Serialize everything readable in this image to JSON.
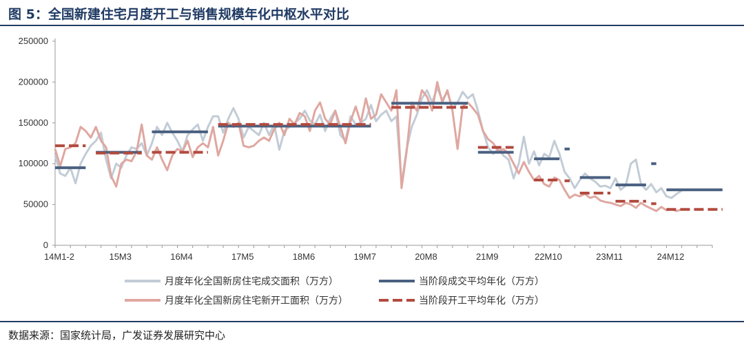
{
  "title": "图 5：全国新建住宅月度开工与销售规模年化中枢水平对比",
  "source": "数据来源：国家统计局，广发证券发展研究中心",
  "colors": {
    "sales": "#c2ccd6",
    "sales_avg": "#4a6080",
    "starts": "#dfa7a0",
    "starts_avg": "#b24a3f",
    "axis": "#999999",
    "rule": "#1f3a63"
  },
  "chart_data": {
    "type": "line",
    "title": "全国新建住宅月度开工与销售规模年化中枢水平对比",
    "ylim": [
      0,
      250000
    ],
    "y_ticks": [
      "0",
      "50000",
      "100000",
      "150000",
      "200000",
      "250000"
    ],
    "x_tick_labels": [
      "14M1-2",
      "15M3",
      "16M4",
      "17M5",
      "18M6",
      "19M7",
      "20M8",
      "21M9",
      "22M10",
      "23M11",
      "24M12"
    ],
    "x_tick_index": [
      0,
      12,
      24,
      36,
      48,
      60,
      72,
      84,
      96,
      108,
      120
    ],
    "n_points": 130,
    "series": [
      {
        "name": "月度年化全国新房住宅成交面积（万方）",
        "style": "line",
        "anchors": [
          [
            0,
            110000
          ],
          [
            1,
            88000
          ],
          [
            2,
            85000
          ],
          [
            3,
            95000
          ],
          [
            4,
            76000
          ],
          [
            5,
            100000
          ],
          [
            6,
            112000
          ],
          [
            7,
            122000
          ],
          [
            8,
            128000
          ],
          [
            9,
            138000
          ],
          [
            10,
            105000
          ],
          [
            11,
            82000
          ],
          [
            12,
            100000
          ],
          [
            13,
            95000
          ],
          [
            14,
            110000
          ],
          [
            15,
            120000
          ],
          [
            16,
            118000
          ],
          [
            17,
            125000
          ],
          [
            18,
            110000
          ],
          [
            19,
            125000
          ],
          [
            20,
            145000
          ],
          [
            21,
            135000
          ],
          [
            22,
            150000
          ],
          [
            23,
            138000
          ],
          [
            24,
            128000
          ],
          [
            25,
            115000
          ],
          [
            26,
            135000
          ],
          [
            27,
            142000
          ],
          [
            28,
            148000
          ],
          [
            29,
            128000
          ],
          [
            30,
            145000
          ],
          [
            31,
            158000
          ],
          [
            32,
            158000
          ],
          [
            33,
            138000
          ],
          [
            34,
            155000
          ],
          [
            35,
            168000
          ],
          [
            36,
            155000
          ],
          [
            37,
            132000
          ],
          [
            38,
            145000
          ],
          [
            39,
            140000
          ],
          [
            40,
            135000
          ],
          [
            41,
            150000
          ],
          [
            42,
            135000
          ],
          [
            43,
            148000
          ],
          [
            44,
            117000
          ],
          [
            45,
            140000
          ],
          [
            46,
            145000
          ],
          [
            47,
            150000
          ],
          [
            48,
            155000
          ],
          [
            49,
            165000
          ],
          [
            50,
            153000
          ],
          [
            51,
            148000
          ],
          [
            52,
            160000
          ],
          [
            53,
            140000
          ],
          [
            54,
            155000
          ],
          [
            55,
            165000
          ],
          [
            56,
            135000
          ],
          [
            57,
            128000
          ],
          [
            58,
            158000
          ],
          [
            59,
            148000
          ],
          [
            60,
            150000
          ],
          [
            61,
            155000
          ],
          [
            62,
            172000
          ],
          [
            63,
            152000
          ],
          [
            64,
            160000
          ],
          [
            65,
            165000
          ],
          [
            66,
            152000
          ],
          [
            67,
            158000
          ],
          [
            68,
            75000
          ],
          [
            69,
            118000
          ],
          [
            70,
            145000
          ],
          [
            71,
            160000
          ],
          [
            72,
            180000
          ],
          [
            73,
            190000
          ],
          [
            74,
            175000
          ],
          [
            75,
            193000
          ],
          [
            76,
            178000
          ],
          [
            77,
            188000
          ],
          [
            78,
            168000
          ],
          [
            79,
            175000
          ],
          [
            80,
            188000
          ],
          [
            81,
            180000
          ],
          [
            82,
            185000
          ],
          [
            83,
            165000
          ],
          [
            84,
            140000
          ],
          [
            85,
            120000
          ],
          [
            86,
            112000
          ],
          [
            87,
            118000
          ],
          [
            88,
            110000
          ],
          [
            89,
            105000
          ],
          [
            90,
            82000
          ],
          [
            91,
            100000
          ],
          [
            92,
            133000
          ],
          [
            93,
            100000
          ],
          [
            94,
            115000
          ],
          [
            95,
            98000
          ],
          [
            96,
            112000
          ],
          [
            97,
            108000
          ],
          [
            98,
            128000
          ],
          [
            99,
            112000
          ],
          [
            100,
            90000
          ],
          [
            101,
            82000
          ],
          [
            102,
            70000
          ],
          [
            103,
            80000
          ],
          [
            104,
            88000
          ],
          [
            105,
            82000
          ],
          [
            106,
            78000
          ],
          [
            107,
            72000
          ],
          [
            108,
            73000
          ],
          [
            109,
            70000
          ],
          [
            110,
            82000
          ],
          [
            111,
            68000
          ],
          [
            112,
            73000
          ],
          [
            113,
            100000
          ],
          [
            114,
            105000
          ],
          [
            115,
            75000
          ],
          [
            116,
            68000
          ],
          [
            117,
            75000
          ],
          [
            118,
            65000
          ],
          [
            119,
            70000
          ],
          [
            120,
            60000
          ],
          [
            121,
            58000
          ],
          [
            122,
            63000
          ],
          [
            123,
            67000
          ]
        ]
      },
      {
        "name": "当阶段成交平均年化（万方）",
        "style": "segments-solid",
        "segments": [
          [
            0,
            6,
            95000
          ],
          [
            8,
            17,
            114000
          ],
          [
            19,
            30,
            139000
          ],
          [
            32,
            62,
            146000
          ],
          [
            66,
            81,
            174000
          ],
          [
            83,
            90,
            114000
          ],
          [
            94,
            99,
            106000
          ],
          [
            100,
            101,
            118000
          ],
          [
            103,
            109,
            83000
          ],
          [
            110,
            116,
            74000
          ],
          [
            117,
            118,
            100000
          ],
          [
            120,
            131,
            68000
          ]
        ]
      },
      {
        "name": "月度年化全国新房住宅新开工面积（万方）",
        "style": "line",
        "anchors": [
          [
            0,
            118000
          ],
          [
            1,
            97000
          ],
          [
            2,
            118000
          ],
          [
            3,
            120000
          ],
          [
            4,
            125000
          ],
          [
            5,
            145000
          ],
          [
            6,
            140000
          ],
          [
            7,
            132000
          ],
          [
            8,
            145000
          ],
          [
            9,
            128000
          ],
          [
            10,
            120000
          ],
          [
            11,
            85000
          ],
          [
            12,
            72000
          ],
          [
            13,
            100000
          ],
          [
            14,
            105000
          ],
          [
            15,
            103000
          ],
          [
            16,
            115000
          ],
          [
            17,
            148000
          ],
          [
            18,
            110000
          ],
          [
            19,
            105000
          ],
          [
            20,
            120000
          ],
          [
            21,
            105000
          ],
          [
            22,
            92000
          ],
          [
            23,
            110000
          ],
          [
            24,
            118000
          ],
          [
            25,
            115000
          ],
          [
            26,
            128000
          ],
          [
            27,
            108000
          ],
          [
            28,
            120000
          ],
          [
            29,
            125000
          ],
          [
            30,
            120000
          ],
          [
            31,
            145000
          ],
          [
            32,
            110000
          ],
          [
            33,
            128000
          ],
          [
            34,
            150000
          ],
          [
            35,
            145000
          ],
          [
            36,
            150000
          ],
          [
            37,
            122000
          ],
          [
            38,
            120000
          ],
          [
            39,
            122000
          ],
          [
            40,
            128000
          ],
          [
            41,
            132000
          ],
          [
            42,
            128000
          ],
          [
            43,
            142000
          ],
          [
            44,
            150000
          ],
          [
            45,
            135000
          ],
          [
            46,
            155000
          ],
          [
            47,
            148000
          ],
          [
            48,
            162000
          ],
          [
            49,
            158000
          ],
          [
            50,
            140000
          ],
          [
            51,
            165000
          ],
          [
            52,
            175000
          ],
          [
            53,
            155000
          ],
          [
            54,
            148000
          ],
          [
            55,
            165000
          ],
          [
            56,
            145000
          ],
          [
            57,
            125000
          ],
          [
            58,
            152000
          ],
          [
            59,
            170000
          ],
          [
            60,
            150000
          ],
          [
            61,
            180000
          ],
          [
            62,
            155000
          ],
          [
            63,
            160000
          ],
          [
            64,
            185000
          ],
          [
            65,
            175000
          ],
          [
            66,
            165000
          ],
          [
            67,
            190000
          ],
          [
            68,
            70000
          ],
          [
            69,
            115000
          ],
          [
            70,
            175000
          ],
          [
            71,
            165000
          ],
          [
            72,
            190000
          ],
          [
            73,
            182000
          ],
          [
            74,
            165000
          ],
          [
            75,
            200000
          ],
          [
            76,
            175000
          ],
          [
            77,
            190000
          ],
          [
            78,
            165000
          ],
          [
            79,
            118000
          ],
          [
            80,
            170000
          ],
          [
            81,
            175000
          ],
          [
            82,
            168000
          ],
          [
            83,
            160000
          ],
          [
            84,
            140000
          ],
          [
            85,
            130000
          ],
          [
            86,
            125000
          ],
          [
            87,
            115000
          ],
          [
            88,
            118000
          ],
          [
            89,
            112000
          ],
          [
            90,
            100000
          ],
          [
            91,
            88000
          ],
          [
            92,
            102000
          ],
          [
            93,
            90000
          ],
          [
            94,
            80000
          ],
          [
            95,
            85000
          ],
          [
            96,
            75000
          ],
          [
            97,
            72000
          ],
          [
            98,
            83000
          ],
          [
            99,
            80000
          ],
          [
            100,
            68000
          ],
          [
            101,
            58000
          ],
          [
            102,
            62000
          ],
          [
            103,
            60000
          ],
          [
            104,
            63000
          ],
          [
            105,
            58000
          ],
          [
            106,
            60000
          ],
          [
            107,
            55000
          ],
          [
            108,
            53000
          ],
          [
            109,
            52000
          ],
          [
            110,
            50000
          ],
          [
            111,
            48000
          ],
          [
            112,
            52000
          ],
          [
            113,
            50000
          ],
          [
            114,
            46000
          ],
          [
            115,
            52000
          ],
          [
            116,
            48000
          ],
          [
            117,
            45000
          ],
          [
            118,
            42000
          ],
          [
            119,
            47000
          ],
          [
            120,
            43000
          ],
          [
            121,
            44000
          ],
          [
            122,
            42000
          ],
          [
            123,
            44000
          ]
        ]
      },
      {
        "name": "当阶段开工平均年化（万方）",
        "style": "segments-dashed",
        "segments": [
          [
            0,
            6,
            122000
          ],
          [
            8,
            17,
            113000
          ],
          [
            19,
            30,
            114000
          ],
          [
            32,
            62,
            148000
          ],
          [
            66,
            81,
            169000
          ],
          [
            83,
            90,
            120000
          ],
          [
            94,
            99,
            80000
          ],
          [
            100,
            101,
            79000
          ],
          [
            103,
            109,
            64000
          ],
          [
            110,
            116,
            54000
          ],
          [
            117,
            118,
            51000
          ],
          [
            120,
            131,
            44000
          ]
        ]
      }
    ]
  }
}
